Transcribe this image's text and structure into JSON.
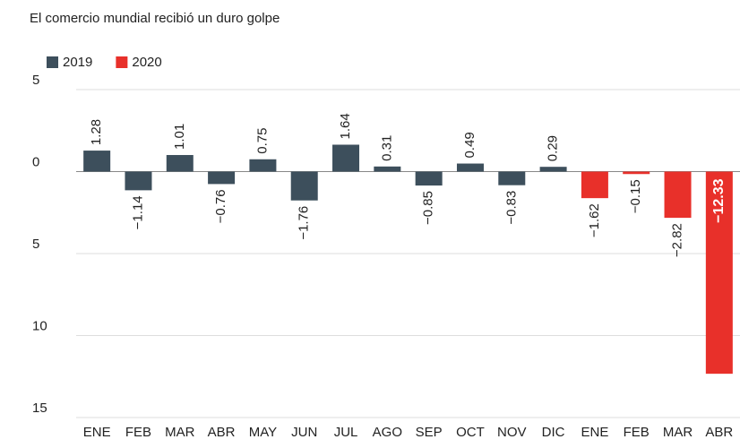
{
  "chart_data": {
    "type": "bar",
    "title": "El comercio mundial recibió un duro golpe",
    "categories": [
      "ENE",
      "FEB",
      "MAR",
      "ABR",
      "MAY",
      "JUN",
      "JUL",
      "AGO",
      "SEP",
      "OCT",
      "NOV",
      "DIC",
      "ENE",
      "FEB",
      "MAR",
      "ABR"
    ],
    "series": [
      {
        "name": "2019",
        "color": "#3d4f5c",
        "values": [
          1.28,
          -1.14,
          1.01,
          -0.76,
          0.75,
          -1.76,
          1.64,
          0.31,
          -0.85,
          0.49,
          -0.83,
          0.29,
          null,
          null,
          null,
          null
        ],
        "value_labels": [
          "1.28",
          "−1.14",
          "1.01",
          "−0.76",
          "0.75",
          "−1.76",
          "1.64",
          "0.31",
          "−0.85",
          "0.49",
          "−0.83",
          "0.29",
          null,
          null,
          null,
          null
        ]
      },
      {
        "name": "2020",
        "color": "#e8302a",
        "values": [
          null,
          null,
          null,
          null,
          null,
          null,
          null,
          null,
          null,
          null,
          null,
          null,
          -1.62,
          -0.15,
          -2.82,
          -12.33
        ],
        "value_labels": [
          null,
          null,
          null,
          null,
          null,
          null,
          null,
          null,
          null,
          null,
          null,
          null,
          "−1.62",
          "−0.15",
          "−2.82",
          "−12.33"
        ]
      }
    ],
    "ylim": [
      -15,
      5
    ],
    "yticks": [
      5,
      0,
      {
        "value": -5,
        "label": "5"
      },
      {
        "value": -10,
        "label": "10"
      },
      {
        "value": -15,
        "label": "15"
      }
    ],
    "grid": true
  }
}
